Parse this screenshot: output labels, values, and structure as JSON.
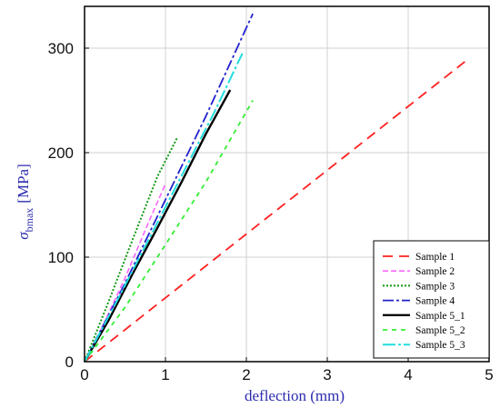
{
  "chart_data": {
    "type": "line",
    "title": "",
    "xlabel": "deflection (mm)",
    "ylabel": {
      "symbol": "σ",
      "subscript": "bmax",
      "unit": "[MPa]"
    },
    "xlim": [
      0,
      5
    ],
    "ylim": [
      0,
      340
    ],
    "xticks": [
      "0",
      "1",
      "2",
      "3",
      "4",
      "5"
    ],
    "yticks": [
      "0",
      "100",
      "200",
      "300"
    ],
    "grid": true,
    "legend_position": "bottom-right",
    "series": [
      {
        "name": "Sample 1",
        "color": "#ff2020",
        "dash": "11 7",
        "width": 1.8,
        "x": [
          0.0,
          4.7
        ],
        "y": [
          0,
          287
        ]
      },
      {
        "name": "Sample 2",
        "color": "#ff66ff",
        "dash": "6 3",
        "width": 1.6,
        "x": [
          0.0,
          0.2,
          0.5,
          0.8,
          1.0
        ],
        "y": [
          0,
          30,
          80,
          135,
          170
        ]
      },
      {
        "name": "Sample 3",
        "color": "#119911",
        "dash": "2 2",
        "width": 2.0,
        "x": [
          0.0,
          0.3,
          0.6,
          0.9,
          1.15
        ],
        "y": [
          0,
          58,
          118,
          177,
          215
        ]
      },
      {
        "name": "Sample 4",
        "color": "#2222cc",
        "dash": "12 3 3 3",
        "width": 1.8,
        "x": [
          0.0,
          0.5,
          1.0,
          1.5,
          2.08
        ],
        "y": [
          0,
          75,
          155,
          235,
          333
        ]
      },
      {
        "name": "Sample 5_1",
        "color": "#000000",
        "dash": "",
        "width": 2.4,
        "x": [
          0.0,
          0.3,
          0.6,
          0.9,
          1.2,
          1.5,
          1.8
        ],
        "y": [
          0,
          40,
          85,
          128,
          172,
          218,
          260
        ]
      },
      {
        "name": "Sample 5_2",
        "color": "#33ee33",
        "dash": "5 5",
        "width": 1.8,
        "x": [
          0.0,
          0.5,
          1.0,
          1.5,
          2.08
        ],
        "y": [
          0,
          52,
          112,
          172,
          250
        ]
      },
      {
        "name": "Sample 5_3",
        "color": "#22dddd",
        "dash": "14 3 3 3",
        "width": 2.0,
        "x": [
          0.0,
          0.4,
          0.8,
          1.2,
          1.6,
          1.95
        ],
        "y": [
          0,
          58,
          118,
          178,
          238,
          295
        ]
      }
    ]
  }
}
